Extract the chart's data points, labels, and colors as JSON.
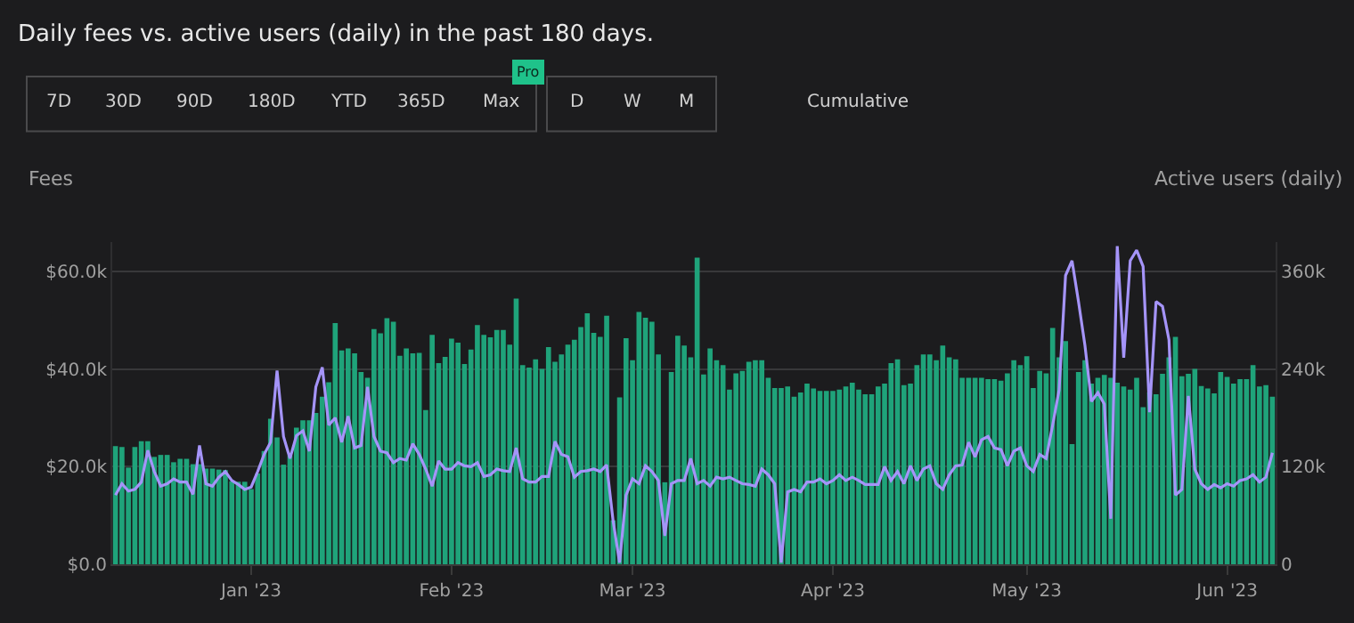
{
  "chart_data": {
    "type": "bar",
    "title": "Daily fees vs. active users (daily) in the past 180 days.",
    "ylabel": "Fees",
    "y2label": "Active users (daily)",
    "annotations": [
      "7D",
      "30D",
      "90D",
      "180D",
      "YTD",
      "365D",
      "Max",
      "Pro",
      "D",
      "W",
      "M",
      "Cumulative"
    ],
    "x": [
      "2022-12-11",
      "2022-12-12",
      "2022-12-13",
      "2022-12-14",
      "2022-12-15",
      "2022-12-16",
      "2022-12-17",
      "2022-12-18",
      "2022-12-19",
      "2022-12-20",
      "2022-12-21",
      "2022-12-22",
      "2022-12-23",
      "2022-12-24",
      "2022-12-25",
      "2022-12-26",
      "2022-12-27",
      "2022-12-28",
      "2022-12-29",
      "2022-12-30",
      "2022-12-31",
      "2023-01-01",
      "2023-01-02",
      "2023-01-03",
      "2023-01-04",
      "2023-01-05",
      "2023-01-06",
      "2023-01-07",
      "2023-01-08",
      "2023-01-09",
      "2023-01-10",
      "2023-01-11",
      "2023-01-12",
      "2023-01-13",
      "2023-01-14",
      "2023-01-15",
      "2023-01-16",
      "2023-01-17",
      "2023-01-18",
      "2023-01-19",
      "2023-01-20",
      "2023-01-21",
      "2023-01-22",
      "2023-01-23",
      "2023-01-24",
      "2023-01-25",
      "2023-01-26",
      "2023-01-27",
      "2023-01-28",
      "2023-01-29",
      "2023-01-30",
      "2023-01-31",
      "2023-02-01",
      "2023-02-02",
      "2023-02-03",
      "2023-02-04",
      "2023-02-05",
      "2023-02-06",
      "2023-02-07",
      "2023-02-08",
      "2023-02-09",
      "2023-02-10",
      "2023-02-11",
      "2023-02-12",
      "2023-02-13",
      "2023-02-14",
      "2023-02-15",
      "2023-02-16",
      "2023-02-17",
      "2023-02-18",
      "2023-02-19",
      "2023-02-20",
      "2023-02-21",
      "2023-02-22",
      "2023-02-23",
      "2023-02-24",
      "2023-02-25",
      "2023-02-26",
      "2023-02-27",
      "2023-02-28",
      "2023-03-01",
      "2023-03-02",
      "2023-03-03",
      "2023-03-04",
      "2023-03-05",
      "2023-03-06",
      "2023-03-07",
      "2023-03-08",
      "2023-03-09",
      "2023-03-10",
      "2023-03-11",
      "2023-03-12",
      "2023-03-13",
      "2023-03-14",
      "2023-03-15",
      "2023-03-16",
      "2023-03-17",
      "2023-03-18",
      "2023-03-19",
      "2023-03-20",
      "2023-03-21",
      "2023-03-22",
      "2023-03-23",
      "2023-03-24",
      "2023-03-25",
      "2023-03-26",
      "2023-03-27",
      "2023-03-28",
      "2023-03-29",
      "2023-03-30",
      "2023-03-31",
      "2023-04-01",
      "2023-04-02",
      "2023-04-03",
      "2023-04-04",
      "2023-04-05",
      "2023-04-06",
      "2023-04-07",
      "2023-04-08",
      "2023-04-09",
      "2023-04-10",
      "2023-04-11",
      "2023-04-12",
      "2023-04-13",
      "2023-04-14",
      "2023-04-15",
      "2023-04-16",
      "2023-04-17",
      "2023-04-18",
      "2023-04-19",
      "2023-04-20",
      "2023-04-21",
      "2023-04-22",
      "2023-04-23",
      "2023-04-24",
      "2023-04-25",
      "2023-04-26",
      "2023-04-27",
      "2023-04-28",
      "2023-04-29",
      "2023-04-30",
      "2023-05-01",
      "2023-05-02",
      "2023-05-03",
      "2023-05-04",
      "2023-05-05",
      "2023-05-06",
      "2023-05-07",
      "2023-05-08",
      "2023-05-09",
      "2023-05-10",
      "2023-05-11",
      "2023-05-12",
      "2023-05-13",
      "2023-05-14",
      "2023-05-15",
      "2023-05-16",
      "2023-05-17",
      "2023-05-18",
      "2023-05-19",
      "2023-05-20",
      "2023-05-21",
      "2023-05-22",
      "2023-05-23",
      "2023-05-24",
      "2023-05-25",
      "2023-05-26",
      "2023-05-27",
      "2023-05-28",
      "2023-05-29",
      "2023-05-30",
      "2023-05-31",
      "2023-06-01",
      "2023-06-02",
      "2023-06-03",
      "2023-06-04",
      "2023-06-05",
      "2023-06-06",
      "2023-06-07",
      "2023-06-08"
    ],
    "series": [
      {
        "color": "#1fa37a",
        "values": [
          24.2,
          24,
          19.8,
          24,
          25.2,
          25.2,
          22,
          22.4,
          22.4,
          20.9,
          21.6,
          21.6,
          20.5,
          20.5,
          19.6,
          19.6,
          19.4,
          19.3,
          17,
          16.9,
          16.9,
          15.4,
          18.6,
          23.2,
          29.8,
          26,
          20.4,
          22.3,
          28,
          29.5,
          29.5,
          31,
          34.3,
          37.3,
          49.4,
          43.8,
          44.2,
          43.2,
          39.4,
          38.2,
          48.2,
          47.3,
          50.4,
          49.7,
          42.7,
          44.2,
          43.2,
          43.3,
          31.6,
          47,
          41.2,
          42.5,
          46.2,
          45.4,
          41,
          44,
          49,
          47,
          46.5,
          48,
          48,
          45,
          54.4,
          40.8,
          40.3,
          42,
          40,
          44.5,
          41.5,
          43,
          45,
          46,
          48.6,
          51.4,
          47.4,
          46.6,
          50.9,
          9,
          34.2,
          46.3,
          41.8,
          51.7,
          50.5,
          49.7,
          43,
          16.8,
          39.4,
          46.8,
          44.8,
          42.4,
          62.8,
          38.9,
          44.2,
          41.8,
          40.8,
          35.8,
          39.1,
          39.6,
          41.5,
          41.8,
          41.8,
          38.2,
          36.1,
          36.1,
          36.4,
          34.3,
          35.2,
          37,
          36,
          35.5,
          35.5,
          35.5,
          35.8,
          36.4,
          37.2,
          35.8,
          34.8,
          34.8,
          36.4,
          37,
          41.2,
          42,
          36.7,
          37,
          40.8,
          43,
          43,
          41.8,
          44.8,
          42.4,
          42,
          38.2,
          38.2,
          38.2,
          38.2,
          37.9,
          37.9,
          37.6,
          39.1,
          41.8,
          40.8,
          42.6,
          36.1,
          39.6,
          39.1,
          48.4,
          42.4,
          45.7,
          24.6,
          39.4,
          41.8,
          37,
          38.2,
          38.8,
          38.2,
          37.2,
          36.4,
          35.8,
          38.2,
          32.2,
          35.2,
          34.8,
          39,
          42.4,
          46.6,
          38.5,
          39,
          40,
          36.5,
          36,
          35,
          39.4,
          38.4,
          37,
          37.9,
          37.9,
          40.8,
          36.4,
          36.7,
          34.3
        ]
      },
      {
        "type": "line",
        "axis": "y2",
        "color": "#a594f9",
        "values": [
          85,
          99,
          90,
          92,
          101,
          140,
          114,
          96,
          99,
          105,
          101,
          101,
          86,
          146,
          99,
          96,
          107,
          114,
          103,
          98,
          92,
          95,
          114,
          135,
          150,
          238,
          157,
          130,
          158,
          164,
          139,
          218,
          242,
          171,
          180,
          150,
          182,
          143,
          146,
          218,
          157,
          139,
          137,
          125,
          130,
          128,
          148,
          135,
          117,
          96,
          127,
          117,
          117,
          125,
          121,
          120,
          125,
          108,
          110,
          117,
          115,
          114,
          143,
          105,
          101,
          101,
          108,
          108,
          151,
          135,
          132,
          107,
          114,
          115,
          117,
          114,
          122,
          53,
          2,
          85,
          105,
          99,
          121,
          114,
          103,
          35,
          99,
          103,
          103,
          130,
          99,
          103,
          96,
          107,
          105,
          107,
          103,
          99,
          98,
          96,
          117,
          110,
          99,
          2,
          89,
          92,
          89,
          101,
          101,
          105,
          99,
          103,
          110,
          103,
          107,
          103,
          98,
          98,
          98,
          120,
          103,
          114,
          99,
          121,
          103,
          117,
          121,
          99,
          92,
          110,
          121,
          122,
          150,
          132,
          153,
          157,
          143,
          141,
          121,
          139,
          143,
          121,
          114,
          135,
          130,
          171,
          214,
          355,
          373,
          323,
          269,
          200,
          211,
          197,
          56,
          391,
          254,
          373,
          386,
          366,
          187,
          323,
          317,
          276,
          85,
          92,
          207,
          117,
          99,
          92,
          98,
          94,
          99,
          96,
          103,
          105,
          110,
          101,
          107,
          137
        ]
      }
    ],
    "xlim": [
      "2022-12-10T12:00",
      "2023-06-08T12:00"
    ],
    "xticks": [
      {
        "value": "2023-01-01",
        "label": "Jan '23"
      },
      {
        "value": "2023-02-01",
        "label": "Feb '23"
      },
      {
        "value": "2023-03-01",
        "label": "Mar '23"
      },
      {
        "value": "2023-04-01",
        "label": "Apr '23"
      },
      {
        "value": "2023-05-01",
        "label": "May '23"
      },
      {
        "value": "2023-06-01",
        "label": "Jun '23"
      }
    ],
    "ylim": [
      0,
      66
    ],
    "yticks": [
      {
        "value": 0,
        "label": "$0.0"
      },
      {
        "value": 20,
        "label": "$20.0k"
      },
      {
        "value": 40,
        "label": "$40.0k"
      },
      {
        "value": 60,
        "label": "$60.0k"
      }
    ],
    "y2lim": [
      0,
      396
    ],
    "y2ticks": [
      0,
      {
        "value": 120,
        "label": "120k"
      },
      {
        "value": 240,
        "label": "240k"
      },
      {
        "value": 360,
        "label": "360k"
      }
    ],
    "grid": "y"
  }
}
